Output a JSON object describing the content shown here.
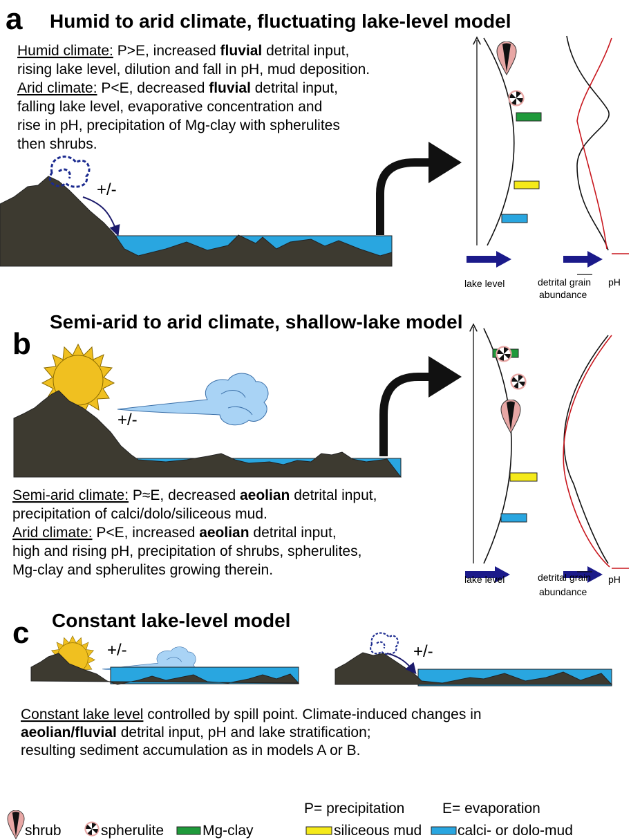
{
  "panel_a": {
    "letter": "a",
    "title": "Humid to arid climate, fluctuating lake-level model",
    "description": [
      [
        "Humid climate:",
        " P>E, increased ",
        "fluvial",
        " detrital input,"
      ],
      [
        "rising lake level, dilution and fall in pH, mud deposition."
      ],
      [
        "Arid climate:",
        " P<E, decreased ",
        "fluvial",
        " detrital input,"
      ],
      [
        "falling lake level, evaporative concentration and"
      ],
      [
        "rise in pH, precipitation of Mg-clay with spherulites"
      ],
      [
        "then shrubs."
      ]
    ],
    "sign": "+/-",
    "lake_level": "lake level",
    "detrital_grain": "detrital grain",
    "abundance": "abundance",
    "ph": "pH"
  },
  "panel_b": {
    "letter": "b",
    "title": "Semi-arid to arid climate, shallow-lake model",
    "description": [
      [
        "Semi-arid climate:",
        " P≈E, decreased ",
        "aeolian",
        " detrital input,"
      ],
      [
        "precipitation of calci/dolo/siliceous mud."
      ],
      [
        "Arid climate:",
        " P<E, increased ",
        "aeolian",
        " detrital input,"
      ],
      [
        "high and rising pH, precipitation of shrubs, spherulites,"
      ],
      [
        "Mg-clay and spherulites growing therein."
      ]
    ],
    "sign": "+/-",
    "lake_level": "lake level",
    "detrital_grain": "detrital grain",
    "abundance": "abundance",
    "ph": "pH"
  },
  "panel_c": {
    "letter": "c",
    "title": "Constant lake-level model",
    "description": [
      [
        "Constant lake level",
        " controlled by spill point. Climate-induced changes in"
      ],
      [
        "aeolian/fluvial",
        " detrital input, pH and lake stratification;"
      ],
      [
        "resulting sediment accumulation as in models A or B."
      ]
    ],
    "sign_left": "+/-",
    "sign_right": "+/-"
  },
  "legend": {
    "precipitation": "P= precipitation",
    "evaporation": "E= evaporation",
    "shrub": "shrub",
    "spherulite": "spherulite",
    "mg_clay": "Mg-clay",
    "siliceous_mud": "siliceous mud",
    "calci_dolo_mud": "calci- or dolo-mud"
  }
}
